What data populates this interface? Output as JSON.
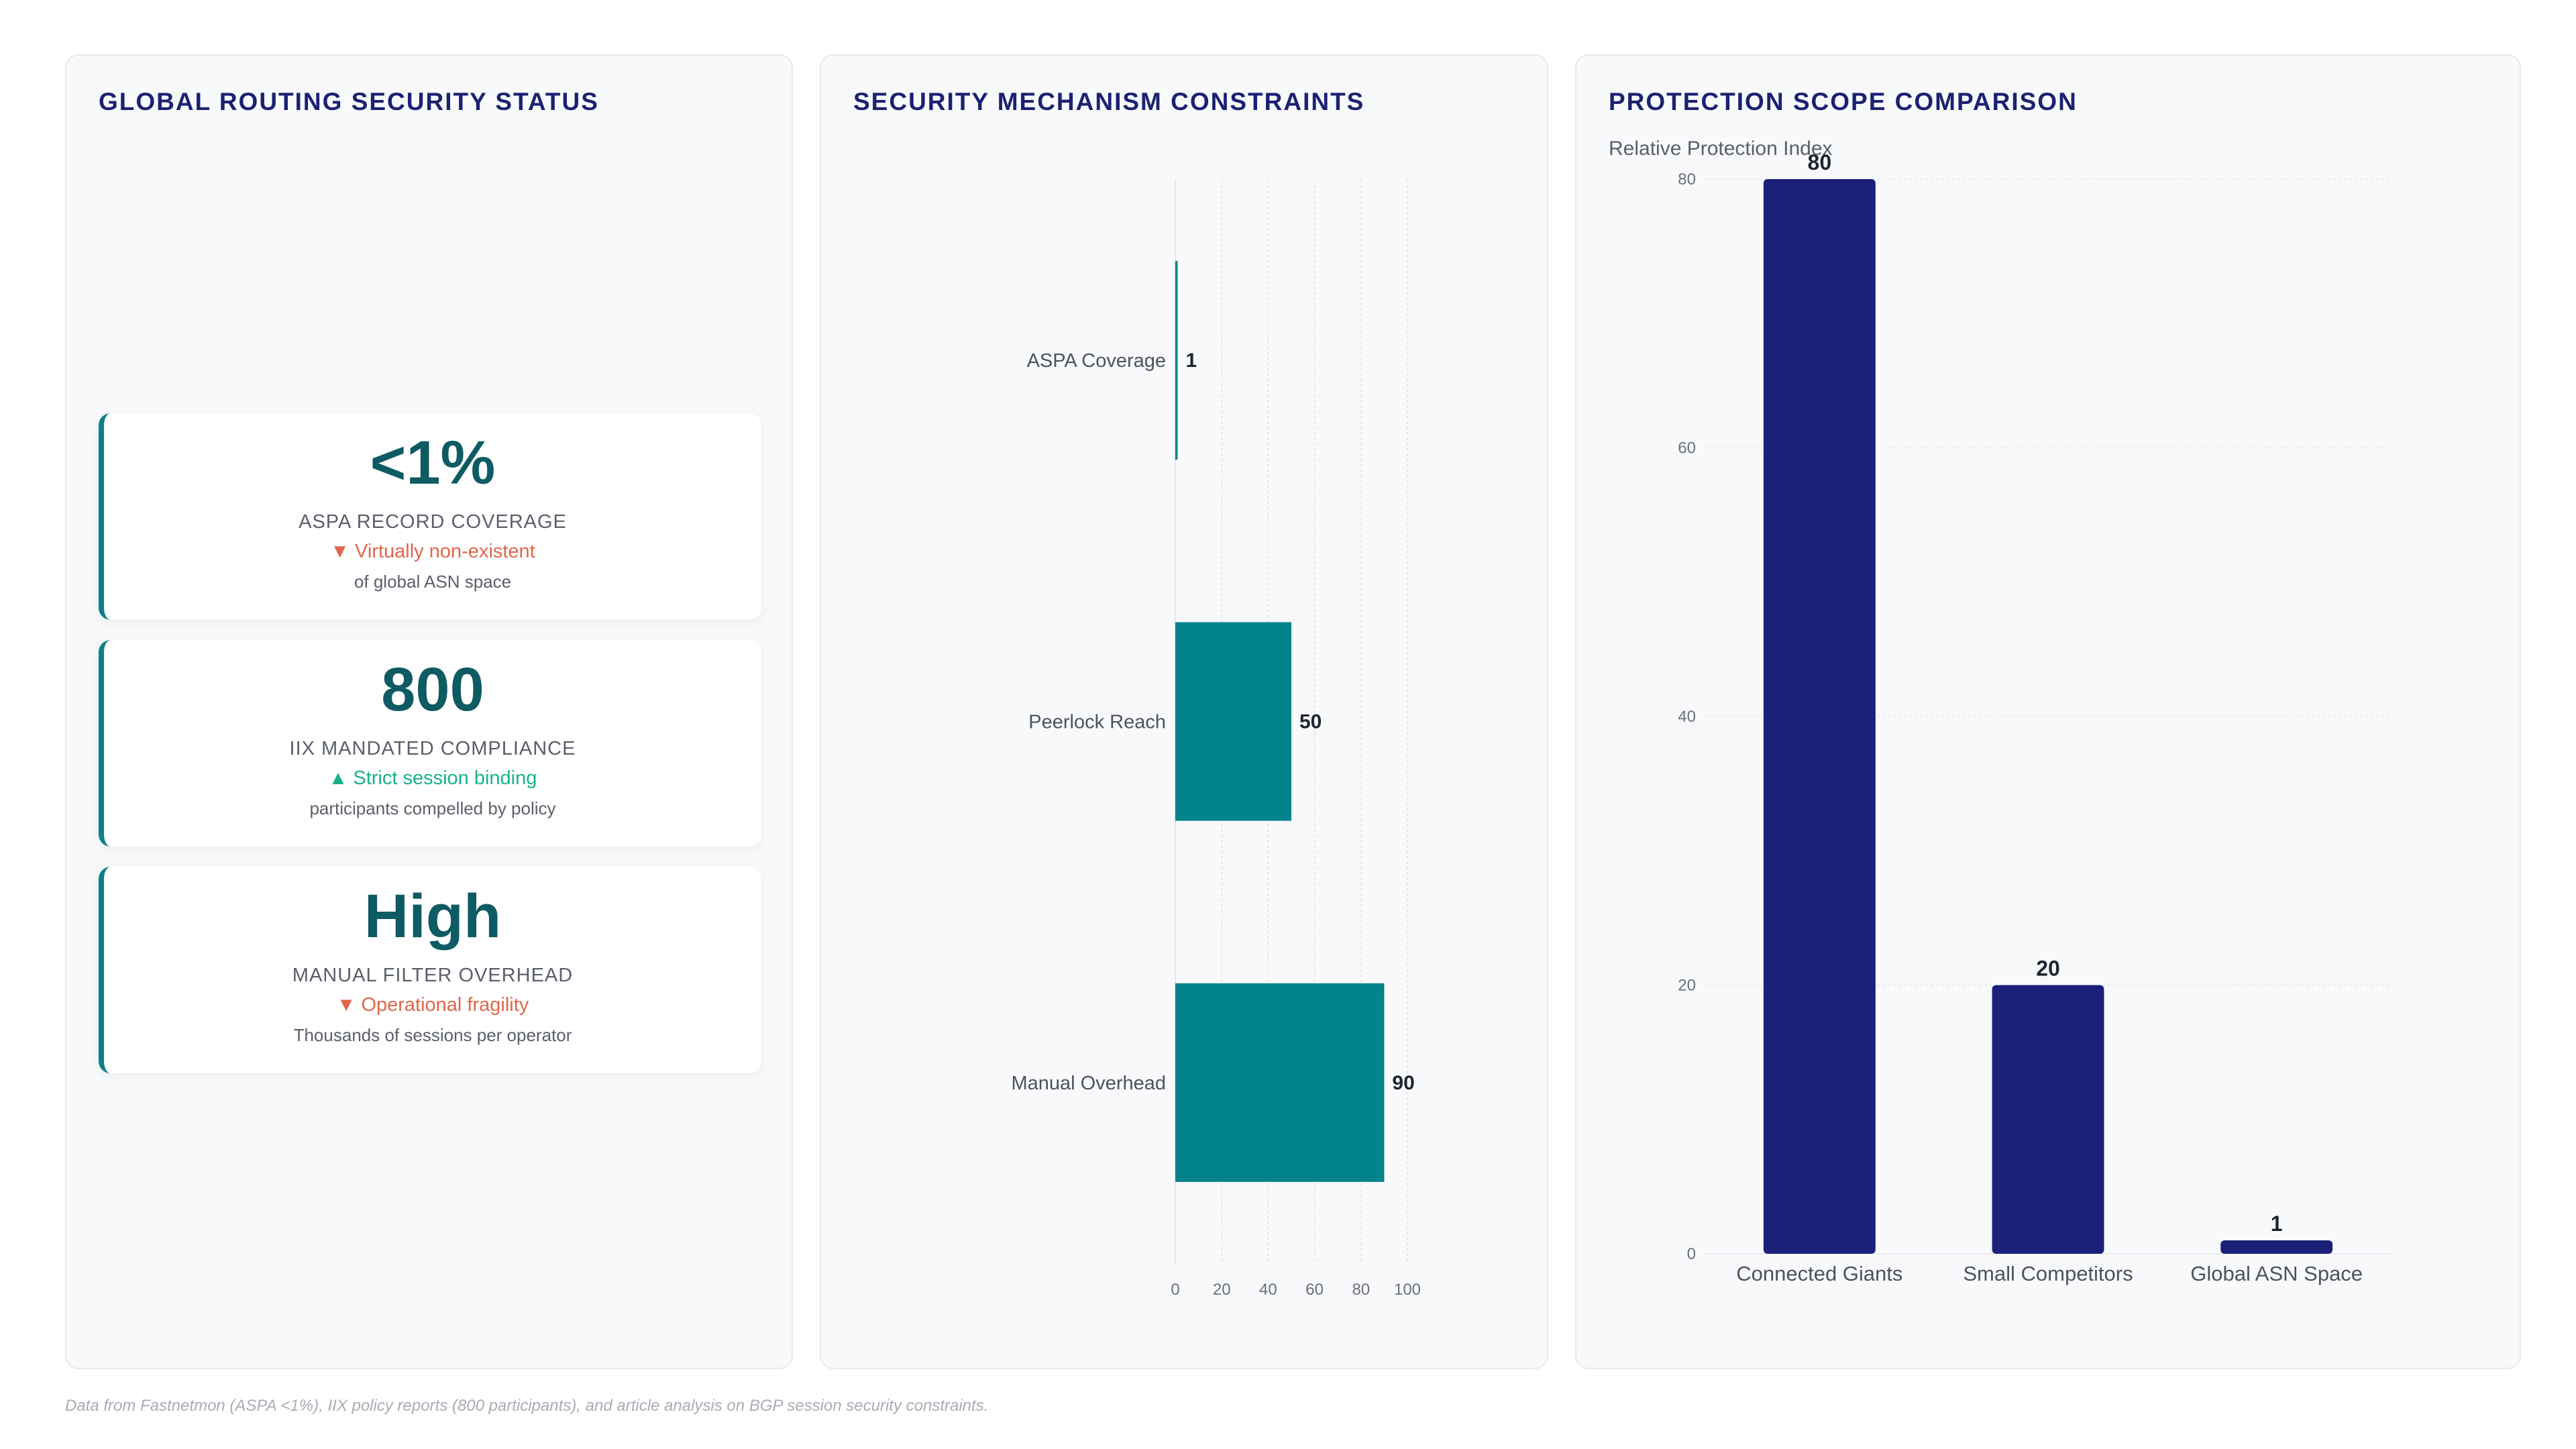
{
  "panels": {
    "status": {
      "title": "GLOBAL ROUTING SECURITY STATUS",
      "kpis": [
        {
          "value": "<1%",
          "label": "ASPA RECORD COVERAGE",
          "trend": "▼ Virtually non-existent",
          "trend_dir": "down",
          "sub": "of global ASN space"
        },
        {
          "value": "800",
          "label": "IIX MANDATED COMPLIANCE",
          "trend": "▲ Strict session binding",
          "trend_dir": "up",
          "sub": "participants compelled by policy"
        },
        {
          "value": "High",
          "label": "MANUAL FILTER OVERHEAD",
          "trend": "▼ Operational fragility",
          "trend_dir": "down",
          "sub": "Thousands of sessions per operator"
        }
      ]
    },
    "constraints": {
      "title": "SECURITY MECHANISM CONSTRAINTS"
    },
    "scope": {
      "title": "PROTECTION SCOPE COMPARISON"
    }
  },
  "chart_data": [
    {
      "type": "bar",
      "orientation": "horizontal",
      "categories": [
        "ASPA Coverage",
        "Peerlock Reach",
        "Manual Overhead"
      ],
      "values": [
        1,
        50,
        90
      ],
      "xlim": [
        0,
        100
      ],
      "xticks": [
        0,
        20,
        40,
        60,
        80,
        100
      ],
      "color": "#03838c",
      "grid": true
    },
    {
      "type": "bar",
      "orientation": "vertical",
      "categories": [
        "Connected Giants",
        "Small Competitors",
        "Global ASN Space"
      ],
      "values": [
        80,
        20,
        1
      ],
      "ylabel": "Relative Protection Index",
      "ylim": [
        0,
        80
      ],
      "yticks": [
        0,
        20,
        40,
        60,
        80
      ],
      "color": "#1b2079",
      "grid": true
    }
  ],
  "footer": "Data from Fastnetmon (ASPA <1%), IIX policy reports (800 participants), and article analysis on BGP session security constraints.",
  "colors": {
    "accent": "#0f7f86",
    "title": "#1b2271",
    "down": "#e0664b",
    "up": "#17b28a"
  }
}
